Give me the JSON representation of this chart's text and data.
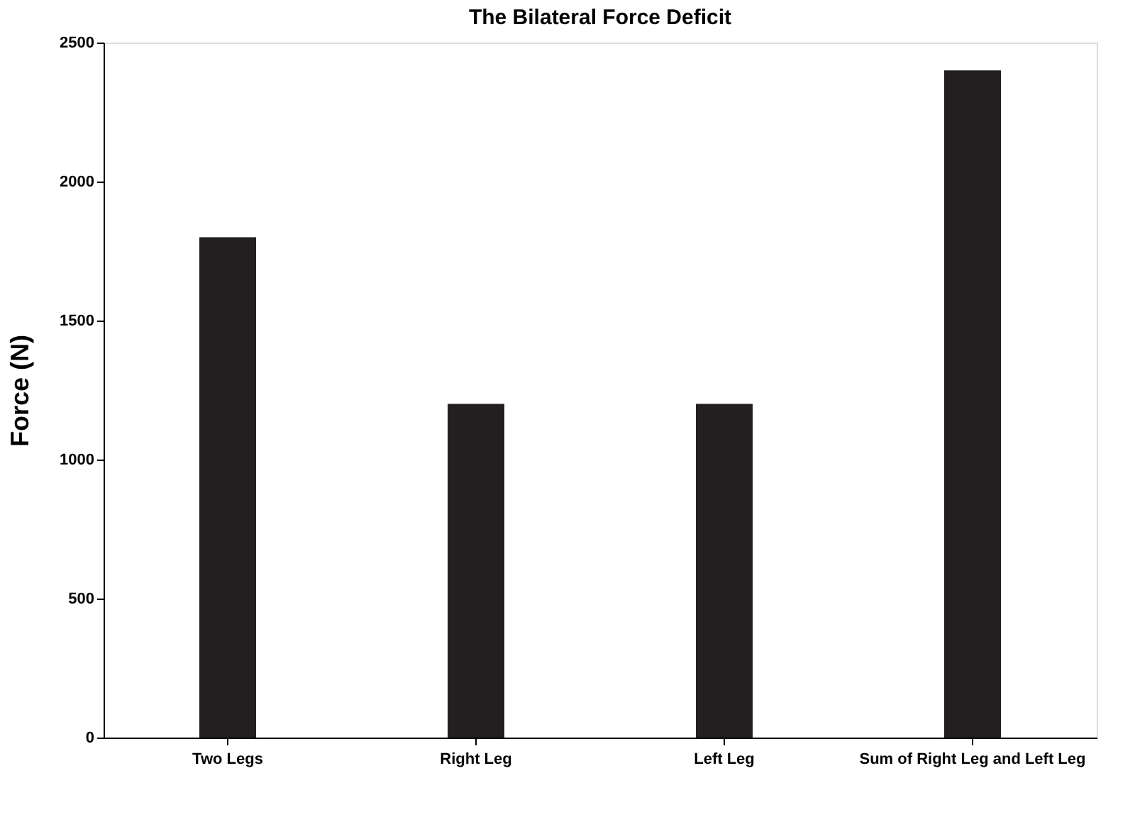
{
  "chart_data": {
    "type": "bar",
    "title": "The Bilateral Force Deficit",
    "ylabel": "Force (N)",
    "categories": [
      "Two Legs",
      "Right Leg",
      "Left Leg",
      "Sum of Right Leg and Left Leg"
    ],
    "values": [
      1800,
      1200,
      1200,
      2400
    ],
    "color": "#231f20",
    "ylim": [
      0,
      2500
    ],
    "yticks": [
      0,
      500,
      1000,
      1500,
      2000,
      2500
    ],
    "grid": false
  }
}
